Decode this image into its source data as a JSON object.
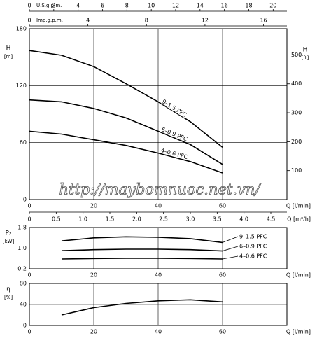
{
  "chart_data": [
    {
      "type": "line",
      "ylabel": "H",
      "yunit": "[m]",
      "xlabel": "Q [l/min]",
      "x": [
        0,
        10,
        20,
        30,
        40,
        50,
        60
      ],
      "xlim": [
        0,
        80
      ],
      "xticks": [
        0,
        20,
        40,
        60
      ],
      "ylim": [
        0,
        180
      ],
      "yticks": [
        0,
        60,
        120,
        180
      ],
      "y2label": "H",
      "y2unit": "[ft]",
      "y2lim": [
        0,
        590.6
      ],
      "y2ticks": [
        100,
        200,
        300,
        400,
        500
      ],
      "grid": true,
      "series": [
        {
          "name": "9–1.5 PFC",
          "color": "#000000",
          "values": [
            157,
            152,
            140,
            122,
            103,
            82,
            55
          ]
        },
        {
          "name": "6–0.9 PFC",
          "color": "#000000",
          "values": [
            105,
            103,
            96,
            86,
            72,
            58,
            37
          ]
        },
        {
          "name": "4–0.6 PFC",
          "color": "#000000",
          "values": [
            72,
            69,
            63,
            57,
            49,
            40,
            28
          ]
        }
      ],
      "top_axes": [
        {
          "label": "U.S.g.p.m.",
          "xlim": [
            0,
            21.13
          ],
          "xticks": [
            0,
            2,
            4,
            6,
            8,
            10,
            12,
            14,
            16,
            18,
            20
          ]
        },
        {
          "label": "Imp.g.p.m.",
          "xlim": [
            0,
            17.6
          ],
          "xticks": [
            0,
            4,
            8,
            12,
            16
          ]
        }
      ],
      "bottom_axis": {
        "label": "Q [m³/h]",
        "xlim": [
          0,
          4.8
        ],
        "xticks": [
          0,
          0.5,
          {
            "value": 1,
            "label": "1.0"
          },
          1.5,
          {
            "value": 2,
            "label": "2.0"
          },
          2.5,
          {
            "value": 3,
            "label": "3.0"
          },
          3.5,
          {
            "value": 4,
            "label": "4.0"
          },
          4.5
        ]
      }
    },
    {
      "type": "line",
      "ylabel": "P₂",
      "yunit": "[kW]",
      "xlabel": "Q [l/min]",
      "x": [
        10,
        20,
        30,
        40,
        50,
        60
      ],
      "xlim": [
        0,
        80
      ],
      "xticks": [
        0,
        20,
        40,
        60
      ],
      "ylim": [
        0.2,
        1.8
      ],
      "yticks": [
        0.2,
        {
          "value": 1,
          "label": "1.0"
        },
        1.8
      ],
      "grid": true,
      "series": [
        {
          "name": "9–1.5 PFC",
          "color": "#000000",
          "values": [
            1.28,
            1.4,
            1.44,
            1.42,
            1.37,
            1.22
          ]
        },
        {
          "name": "6–0.9 PFC",
          "color": "#000000",
          "values": [
            0.9,
            0.94,
            0.96,
            0.96,
            0.94,
            0.89
          ]
        },
        {
          "name": "4–0.6 PFC",
          "color": "#000000",
          "values": [
            0.58,
            0.6,
            0.61,
            0.61,
            0.6,
            0.58
          ]
        }
      ]
    },
    {
      "type": "line",
      "ylabel": "η",
      "yunit": "[%]",
      "xlabel": "Q [l/min]",
      "x": [
        10,
        20,
        30,
        40,
        50,
        60
      ],
      "xlim": [
        0,
        80
      ],
      "xticks": [
        0,
        20,
        40,
        60
      ],
      "ylim": [
        0,
        80
      ],
      "yticks": [
        0,
        40,
        80
      ],
      "grid": true,
      "series": [
        {
          "color": "#000000",
          "values": [
            20,
            34,
            42,
            47,
            49,
            45
          ]
        }
      ]
    }
  ],
  "watermark": "http://maybomnuoc.net.vn/"
}
